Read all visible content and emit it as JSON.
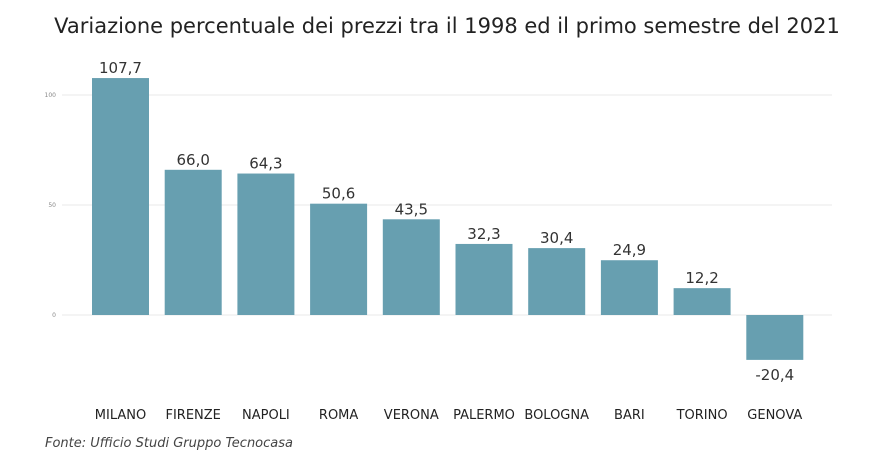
{
  "chart_data": {
    "type": "bar",
    "title": "Variazione percentuale dei prezzi tra il 1998 ed il primo semestre del 2021",
    "categories": [
      "MILANO",
      "FIRENZE",
      "NAPOLI",
      "ROMA",
      "VERONA",
      "PALERMO",
      "BOLOGNA",
      "BARI",
      "TORINO",
      "GENOVA"
    ],
    "values": [
      107.7,
      66.0,
      64.3,
      50.6,
      43.5,
      32.3,
      30.4,
      24.9,
      12.2,
      -20.4
    ],
    "data_labels": [
      "107,7",
      "66,0",
      "64,3",
      "50,6",
      "43,5",
      "32,3",
      "30,4",
      "24,9",
      "12,2",
      "-20,4"
    ],
    "yticks": [
      0,
      50,
      100
    ],
    "ylim": [
      -25,
      110
    ],
    "grid": true,
    "xlabel": "",
    "ylabel": "",
    "color": "#679fb0",
    "source": "Fonte: Ufficio Studi Gruppo Tecnocasa"
  }
}
